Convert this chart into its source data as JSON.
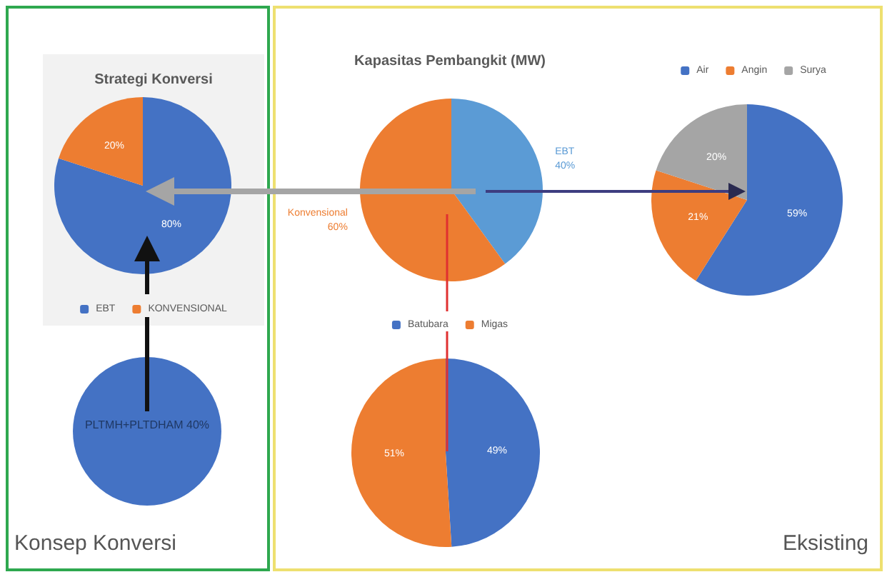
{
  "chart_data": [
    {
      "type": "pie",
      "title": "Strategi Konversi",
      "categories": [
        "EBT",
        "KONVENSIONAL"
      ],
      "values": [
        80,
        20
      ],
      "colors": [
        "#4472c4",
        "#ed7d31"
      ],
      "value_labels": [
        "80%",
        "20%"
      ],
      "legend": "bottom",
      "annotations": [
        "PLTMH+PLTDHAM 40%",
        "Konsep Konversi"
      ]
    },
    {
      "type": "pie",
      "title": "Kapasitas Pembangkit (MW)",
      "categories": [
        "EBT",
        "Konvensional"
      ],
      "values": [
        40,
        60
      ],
      "colors": [
        "#5b9bd5",
        "#ed7d31"
      ],
      "value_labels": [
        "40%",
        "60%"
      ]
    },
    {
      "type": "pie",
      "categories": [
        "Air",
        "Angin",
        "Surya"
      ],
      "values": [
        59,
        21,
        20
      ],
      "colors": [
        "#4472c4",
        "#ed7d31",
        "#a5a5a5"
      ],
      "value_labels": [
        "59%",
        "21%",
        "20%"
      ],
      "legend": "top"
    },
    {
      "type": "pie",
      "categories": [
        "Batubara",
        "Migas"
      ],
      "values": [
        49,
        51
      ],
      "colors": [
        "#4472c4",
        "#ed7d31"
      ],
      "value_labels": [
        "49%",
        "51%"
      ],
      "legend": "top",
      "annotations": [
        "Eksisting"
      ]
    }
  ]
}
